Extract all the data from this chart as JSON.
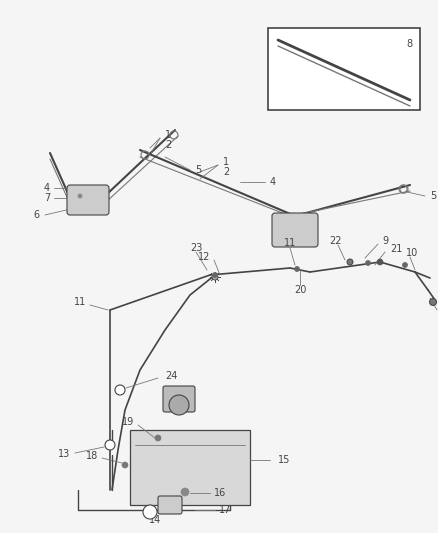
{
  "bg_color": "#f5f5f5",
  "fig_width": 4.38,
  "fig_height": 5.33,
  "dpi": 100,
  "line_color": "#444444",
  "leader_color": "#777777",
  "detail_color": "#666666"
}
